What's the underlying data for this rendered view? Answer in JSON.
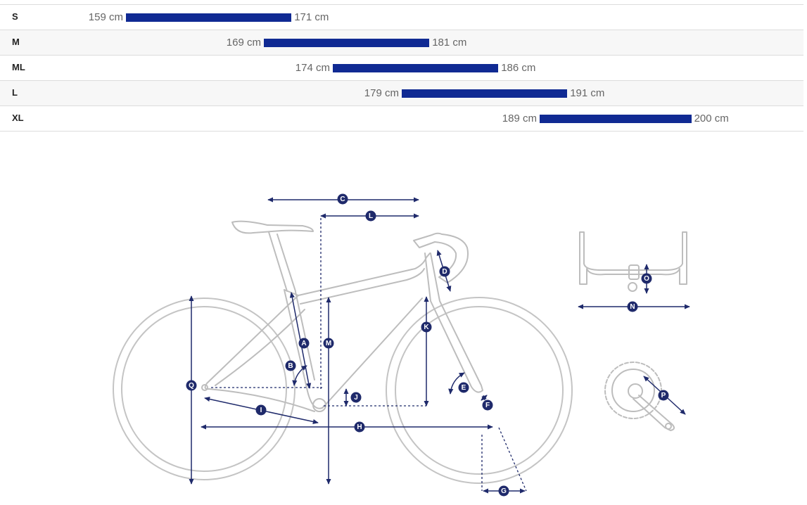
{
  "size_chart": {
    "rows": [
      {
        "size": "S",
        "min": "159 cm",
        "max": "171 cm",
        "start": 159,
        "end": 171
      },
      {
        "size": "M",
        "min": "169 cm",
        "max": "181 cm",
        "start": 169,
        "end": 181
      },
      {
        "size": "ML",
        "min": "174 cm",
        "max": "186 cm",
        "start": 174,
        "end": 186
      },
      {
        "size": "L",
        "min": "179 cm",
        "max": "191 cm",
        "start": 179,
        "end": 191
      },
      {
        "size": "XL",
        "min": "189 cm",
        "max": "200 cm",
        "start": 189,
        "end": 200
      }
    ],
    "bar_color": "#102a93"
  },
  "diagram": {
    "measurement_labels": [
      "A",
      "B",
      "C",
      "D",
      "E",
      "F",
      "G",
      "H",
      "I",
      "J",
      "K",
      "L",
      "M",
      "N",
      "O",
      "P",
      "Q"
    ],
    "accent_color": "#1f2a6b",
    "frame_color": "#bdbdbd"
  }
}
